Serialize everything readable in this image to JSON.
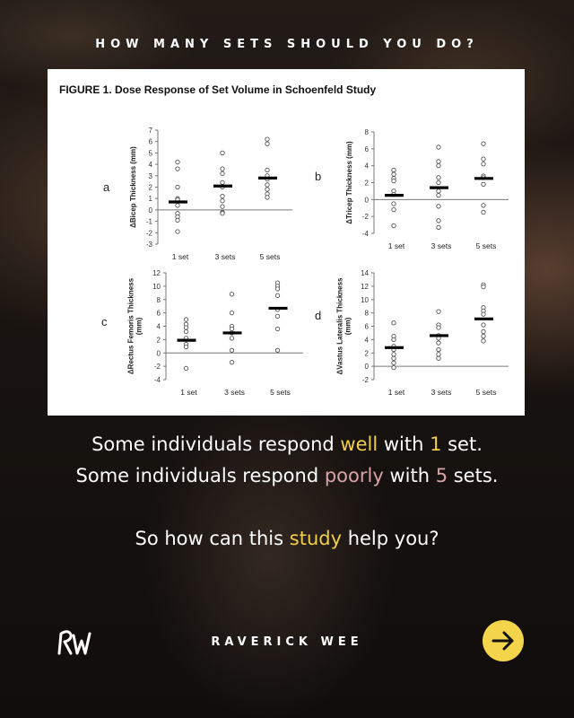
{
  "header": {
    "title": "HOW MANY SETS SHOULD YOU DO?"
  },
  "figure": {
    "title": "FIGURE 1. Dose Response of Set Volume in Schoenfeld Study"
  },
  "chart_data": [
    {
      "type": "scatter",
      "panel_label": "a",
      "ylabel": "ΔBicep Thickness (mm)",
      "ylim": [
        -3,
        7
      ],
      "yticks": [
        -3,
        -2,
        -1,
        0,
        1,
        2,
        3,
        4,
        5,
        6,
        7
      ],
      "categories": [
        "1 set",
        "3 sets",
        "5 sets"
      ],
      "means": [
        0.7,
        2.1,
        2.8
      ],
      "points": [
        [
          4.2,
          3.6,
          2.0,
          1.0,
          0.9,
          0.4,
          -0.3,
          -0.6,
          -0.9,
          -1.9
        ],
        [
          5.0,
          3.6,
          3.2,
          2.4,
          2.0,
          1.2,
          0.8,
          0.3,
          -0.2,
          -0.3
        ],
        [
          6.2,
          5.8,
          3.5,
          3.0,
          2.7,
          2.2,
          1.8,
          1.4,
          1.1
        ]
      ]
    },
    {
      "type": "scatter",
      "panel_label": "b",
      "ylabel": "ΔTricep Thickness (mm)",
      "ylim": [
        -4,
        8
      ],
      "yticks": [
        -4,
        -2,
        0,
        2,
        4,
        6,
        8
      ],
      "categories": [
        "1 set",
        "3 sets",
        "5 sets"
      ],
      "means": [
        0.5,
        1.4,
        2.5
      ],
      "points": [
        [
          3.5,
          3.0,
          2.5,
          2.2,
          1.0,
          0.6,
          -0.5,
          -1.2,
          -3.1
        ],
        [
          6.2,
          4.5,
          4.0,
          2.6,
          2.0,
          1.0,
          0.5,
          -0.8,
          -2.5,
          -3.3
        ],
        [
          6.6,
          4.8,
          4.2,
          2.8,
          2.6,
          1.8,
          -0.7,
          -1.5
        ]
      ]
    },
    {
      "type": "scatter",
      "panel_label": "c",
      "ylabel": "ΔRectus Femoris Thickness (mm)",
      "ylim": [
        -4,
        12
      ],
      "yticks": [
        -4,
        -2,
        0,
        2,
        4,
        6,
        8,
        10,
        12
      ],
      "categories": [
        "1 set",
        "3 sets",
        "5 sets"
      ],
      "means": [
        1.9,
        3.0,
        6.7
      ],
      "points": [
        [
          5.0,
          4.3,
          3.8,
          3.2,
          2.2,
          1.3,
          0.9,
          -2.3
        ],
        [
          8.8,
          6.0,
          4.0,
          3.6,
          3.0,
          2.2,
          0.4,
          -1.4
        ],
        [
          10.5,
          10.0,
          9.6,
          8.6,
          6.5,
          5.5,
          3.6,
          0.4
        ]
      ]
    },
    {
      "type": "scatter",
      "panel_label": "d",
      "ylabel": "ΔVastus Lateralis Thickness (mm)",
      "ylim": [
        -2,
        14
      ],
      "yticks": [
        -2,
        0,
        2,
        4,
        6,
        8,
        10,
        12,
        14
      ],
      "categories": [
        "1 set",
        "3 sets",
        "5 sets"
      ],
      "means": [
        2.8,
        4.6,
        7.1
      ],
      "points": [
        [
          6.5,
          4.5,
          4.0,
          3.0,
          2.5,
          1.8,
          1.2,
          0.5,
          -0.2
        ],
        [
          8.2,
          6.2,
          5.8,
          4.6,
          4.2,
          3.5,
          2.5,
          1.8,
          1.2
        ],
        [
          12.2,
          11.9,
          8.8,
          8.3,
          7.8,
          6.2,
          5.2,
          4.5,
          3.8
        ]
      ]
    }
  ],
  "messages": {
    "line1": {
      "a": "Some individuals respond ",
      "b": "well",
      "c": " with ",
      "d": "1",
      "e": " set."
    },
    "line2": {
      "a": "Some individuals respond ",
      "b": "poorly",
      "c": " with ",
      "d": "5",
      "e": " sets."
    },
    "line3": {
      "a": "So how can this ",
      "b": "study",
      "c": " help you?"
    }
  },
  "footer": {
    "logo_text": "RW",
    "brand": "RAVERICK WEE",
    "next_icon": "arrow-right-icon"
  },
  "colors": {
    "accent_yellow": "#f2cf4a",
    "accent_pink": "#d9a3a7",
    "button": "#f3d44a"
  }
}
